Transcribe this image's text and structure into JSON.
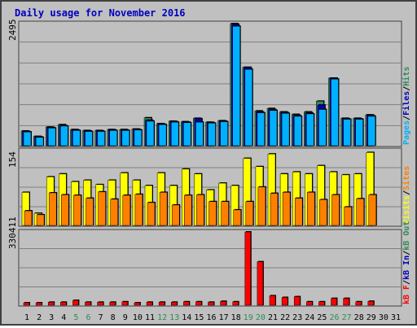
{
  "title": "Daily usage for November 2016",
  "colors": {
    "background": "#c0c0c0",
    "title": "#0000c0",
    "panel_border": "#404040",
    "pages": "#00b0ff",
    "files": "#0000c0",
    "hits": "#2e8b57",
    "visits": "#ffff00",
    "sites": "#ff8000",
    "kbf": "#ff0000",
    "kbin": "#0000c0",
    "kbout": "#2e8b57",
    "weekend_day": "#2e8b57",
    "weekday": "#000000"
  },
  "chart_data": [
    {
      "type": "bar",
      "name": "pages_files_hits",
      "ymax_label": "2495",
      "ylim": [
        0,
        2495
      ],
      "legend": [
        "Pages",
        "/",
        "Files",
        "/",
        "Hits"
      ],
      "x": [
        "1",
        "2",
        "3",
        "4",
        "5",
        "6",
        "7",
        "8",
        "9",
        "10",
        "11",
        "12",
        "13",
        "14",
        "15",
        "16",
        "17",
        "18",
        "19",
        "20",
        "21",
        "22",
        "23",
        "24",
        "25",
        "26",
        "27",
        "28",
        "29",
        "30",
        "31"
      ],
      "series": [
        {
          "name": "Hits",
          "values": [
            300,
            190,
            380,
            430,
            330,
            310,
            310,
            330,
            330,
            340,
            570,
            450,
            500,
            490,
            560,
            480,
            510,
            2495,
            1600,
            710,
            760,
            690,
            640,
            690,
            910,
            1380,
            560,
            560,
            630,
            0,
            0
          ]
        },
        {
          "name": "Files",
          "values": [
            290,
            180,
            370,
            410,
            320,
            300,
            300,
            320,
            320,
            330,
            520,
            440,
            490,
            480,
            550,
            470,
            500,
            2480,
            1600,
            690,
            740,
            680,
            620,
            670,
            830,
            1380,
            550,
            550,
            620,
            0,
            0
          ]
        },
        {
          "name": "Pages",
          "values": [
            280,
            170,
            360,
            400,
            310,
            290,
            290,
            310,
            310,
            320,
            500,
            430,
            480,
            470,
            480,
            460,
            490,
            2440,
            1560,
            670,
            720,
            660,
            600,
            650,
            740,
            1360,
            540,
            540,
            600,
            0,
            0
          ]
        }
      ]
    },
    {
      "type": "bar",
      "name": "visits_sites",
      "ymax_label": "154",
      "ylim": [
        0,
        154
      ],
      "legend": [
        "Visits",
        "/",
        "Sites"
      ],
      "x": [
        "1",
        "2",
        "3",
        "4",
        "5",
        "6",
        "7",
        "8",
        "9",
        "10",
        "11",
        "12",
        "13",
        "14",
        "15",
        "16",
        "17",
        "18",
        "19",
        "20",
        "21",
        "22",
        "23",
        "24",
        "25",
        "26",
        "27",
        "28",
        "29",
        "30",
        "31"
      ],
      "series": [
        {
          "name": "Visits",
          "values": [
            68,
            25,
            100,
            106,
            90,
            93,
            84,
            93,
            108,
            93,
            82,
            108,
            82,
            116,
            106,
            73,
            87,
            82,
            138,
            121,
            147,
            106,
            110,
            106,
            123,
            110,
            104,
            106,
            150,
            0,
            0
          ]
        },
        {
          "name": "Sites",
          "values": [
            30,
            22,
            67,
            63,
            62,
            56,
            69,
            54,
            62,
            64,
            47,
            68,
            42,
            62,
            63,
            49,
            49,
            32,
            49,
            79,
            66,
            68,
            56,
            68,
            53,
            63,
            38,
            55,
            63,
            0,
            0
          ]
        }
      ]
    },
    {
      "type": "bar",
      "name": "kbytes",
      "ymax_label": "330411",
      "ylim": [
        0,
        330411
      ],
      "legend": [
        "kB F",
        "/",
        "kB In",
        "/",
        "kB Out"
      ],
      "x": [
        "1",
        "2",
        "3",
        "4",
        "5",
        "6",
        "7",
        "8",
        "9",
        "10",
        "11",
        "12",
        "13",
        "14",
        "15",
        "16",
        "17",
        "18",
        "19",
        "20",
        "21",
        "22",
        "23",
        "24",
        "25",
        "26",
        "27",
        "28",
        "29",
        "30",
        "31"
      ],
      "series": [
        {
          "name": "kB F",
          "values": [
            10200,
            5000,
            13700,
            13700,
            22000,
            13700,
            13700,
            13700,
            15500,
            10200,
            13700,
            13700,
            13700,
            15500,
            15500,
            13700,
            17700,
            15500,
            330411,
            196000,
            42700,
            35100,
            38500,
            15500,
            15500,
            30800,
            30800,
            15500,
            17700,
            0,
            0
          ]
        }
      ]
    }
  ],
  "days": [
    {
      "label": "1",
      "weekend": false
    },
    {
      "label": "2",
      "weekend": false
    },
    {
      "label": "3",
      "weekend": false
    },
    {
      "label": "4",
      "weekend": false
    },
    {
      "label": "5",
      "weekend": true
    },
    {
      "label": "6",
      "weekend": true
    },
    {
      "label": "7",
      "weekend": false
    },
    {
      "label": "8",
      "weekend": false
    },
    {
      "label": "9",
      "weekend": false
    },
    {
      "label": "10",
      "weekend": false
    },
    {
      "label": "11",
      "weekend": false
    },
    {
      "label": "12",
      "weekend": true
    },
    {
      "label": "13",
      "weekend": true
    },
    {
      "label": "14",
      "weekend": false
    },
    {
      "label": "15",
      "weekend": false
    },
    {
      "label": "16",
      "weekend": false
    },
    {
      "label": "17",
      "weekend": false
    },
    {
      "label": "18",
      "weekend": false
    },
    {
      "label": "19",
      "weekend": true
    },
    {
      "label": "20",
      "weekend": true
    },
    {
      "label": "21",
      "weekend": false
    },
    {
      "label": "22",
      "weekend": false
    },
    {
      "label": "23",
      "weekend": false
    },
    {
      "label": "24",
      "weekend": false
    },
    {
      "label": "25",
      "weekend": false
    },
    {
      "label": "26",
      "weekend": true
    },
    {
      "label": "27",
      "weekend": true
    },
    {
      "label": "28",
      "weekend": false
    },
    {
      "label": "29",
      "weekend": false
    },
    {
      "label": "30",
      "weekend": false
    },
    {
      "label": "31",
      "weekend": false
    }
  ]
}
